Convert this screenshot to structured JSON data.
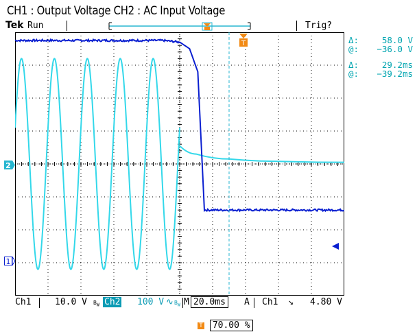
{
  "caption": "CH1 : Output Voltage CH2 : AC Input Voltage",
  "header": {
    "brand": "Tek",
    "status": "Run",
    "trigger_status": "Trig?"
  },
  "cursor_readouts": {
    "voltage_delta_label": "Δ:",
    "voltage_delta": "58.0 V",
    "voltage_at_label": "@:",
    "voltage_at": "−36.0 V",
    "time_delta_label": "Δ:",
    "time_delta": "29.2ms",
    "time_at_label": "@:",
    "time_at": "−39.2ms"
  },
  "markers": {
    "ch2_marker": "2",
    "ch1_marker": "1"
  },
  "bottom": {
    "ch1_label": "Ch1",
    "ch1_scale": "10.0 V",
    "ch2_label": "Ch2",
    "ch2_scale": "100 V",
    "timebase_label": "M",
    "timebase": "20.0ms",
    "trigger_mode": "A",
    "trigger_source": "Ch1",
    "trigger_level": "4.80 V"
  },
  "trigger_position": "70.00 %",
  "colors": {
    "ch1": "#0a1fd0",
    "ch2": "#33d8ea",
    "grid": "#000000",
    "cursor": "#27b6d0",
    "trigger_marker": "#f28a14"
  },
  "chart_data": {
    "type": "line",
    "x_divisions": 10,
    "y_divisions": 8,
    "series": [
      {
        "name": "CH1",
        "x": [
          0,
          2.5,
          4.5,
          5.0,
          5.3,
          5.55,
          5.75,
          6.0,
          10
        ],
        "values": [
          3.75,
          3.75,
          3.75,
          3.7,
          3.5,
          2.8,
          -1.4,
          -1.4,
          -1.4
        ]
      },
      {
        "name": "CH2",
        "waveform": "sine",
        "cycles": 5,
        "x_start": 0.0,
        "x_end": 5.0,
        "amplitude_div": 3.2,
        "offset_div": 0,
        "decay_x": [
          5.0,
          5.5,
          6.5,
          8.0,
          10
        ],
        "decay_values": [
          0.55,
          0.3,
          0.15,
          0.08,
          0.05
        ]
      }
    ]
  }
}
